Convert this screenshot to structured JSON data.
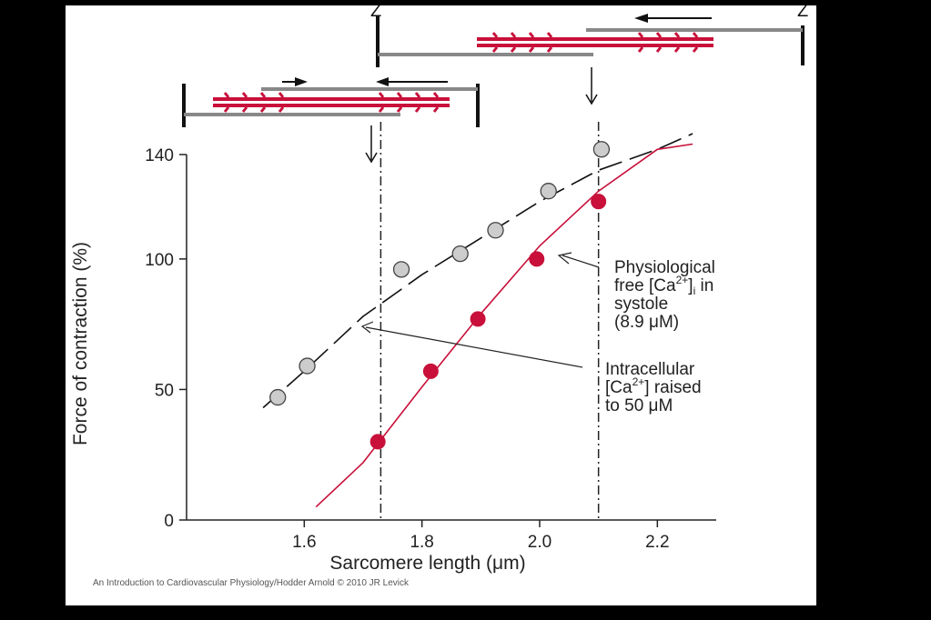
{
  "chart_data": {
    "type": "scatter",
    "xlabel": "Sarcomere length (μm)",
    "ylabel": "Force of contraction (%)",
    "xlim": [
      1.4,
      2.3
    ],
    "ylim": [
      0,
      140
    ],
    "x_ticks": [
      "1.6",
      "1.8",
      "2.0",
      "2.2"
    ],
    "y_ticks": [
      "0",
      "50",
      "100",
      "140"
    ],
    "series": [
      {
        "marker": "open-circle",
        "color": "#cccccc",
        "line": "dashed",
        "points": [
          [
            1.555,
            47
          ],
          [
            1.605,
            59
          ],
          [
            1.765,
            96
          ],
          [
            1.865,
            102
          ],
          [
            1.925,
            111
          ],
          [
            2.015,
            126
          ],
          [
            2.105,
            142
          ]
        ],
        "fit": [
          [
            1.53,
            43
          ],
          [
            1.6,
            57
          ],
          [
            1.7,
            78
          ],
          [
            1.8,
            94
          ],
          [
            1.9,
            108
          ],
          [
            2.0,
            122
          ],
          [
            2.1,
            134
          ],
          [
            2.2,
            142
          ],
          [
            2.26,
            148
          ]
        ]
      },
      {
        "marker": "filled-circle",
        "color": "#c8103a",
        "line": "solid",
        "points": [
          [
            1.725,
            30
          ],
          [
            1.815,
            57
          ],
          [
            1.895,
            77
          ],
          [
            1.995,
            100
          ],
          [
            2.1,
            122
          ]
        ],
        "fit": [
          [
            1.62,
            5
          ],
          [
            1.7,
            22
          ],
          [
            1.8,
            51
          ],
          [
            1.9,
            79
          ],
          [
            2.0,
            105
          ],
          [
            2.1,
            126
          ],
          [
            2.2,
            142
          ],
          [
            2.26,
            144
          ]
        ]
      }
    ],
    "reference_lines": [
      1.73,
      2.1
    ]
  },
  "annotations": {
    "physio": {
      "line1": "Physiological",
      "line2a": "free [Ca",
      "line2sup": "2+",
      "line2b": "]",
      "line2sub": "i",
      "line2c": " in",
      "line3": "systole",
      "line4": "(8.9 μM)"
    },
    "intra": {
      "line1": "Intracellular",
      "line2a": "[Ca",
      "line2sup": "2+",
      "line2b": "] raised",
      "line3": "to 50 μM"
    }
  },
  "z_labels": [
    "Z",
    "Z"
  ],
  "credit": "An Introduction to Cardiovascular Physiology/Hodder Arnold © 2010 JR Levick"
}
